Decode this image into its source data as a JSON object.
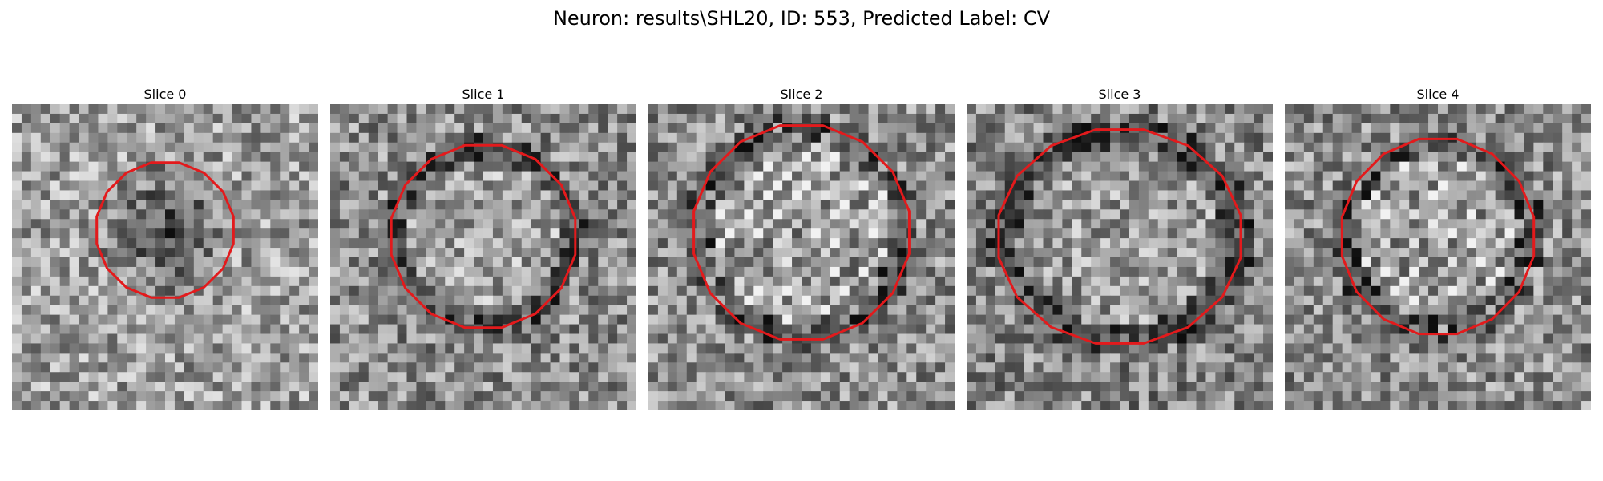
{
  "figure": {
    "title": "Neuron: results\\SHL20, ID: 553, Predicted Label: CV",
    "outline_color": "#e31a1c"
  },
  "panels": [
    {
      "title": "Slice 0",
      "seed": 11,
      "base": 0.62,
      "center": [
        0.5,
        0.5
      ],
      "contrast": "dark-center"
    },
    {
      "title": "Slice 1",
      "seed": 23,
      "base": 0.55,
      "center": [
        0.5,
        0.5
      ],
      "contrast": "ring"
    },
    {
      "title": "Slice 2",
      "seed": 37,
      "base": 0.55,
      "center": [
        0.5,
        0.5
      ],
      "contrast": "striped"
    },
    {
      "title": "Slice 3",
      "seed": 41,
      "base": 0.52,
      "center": [
        0.5,
        0.5
      ],
      "contrast": "ring"
    },
    {
      "title": "Slice 4",
      "seed": 53,
      "base": 0.55,
      "center": [
        0.5,
        0.5
      ],
      "contrast": "ring-striped"
    }
  ]
}
